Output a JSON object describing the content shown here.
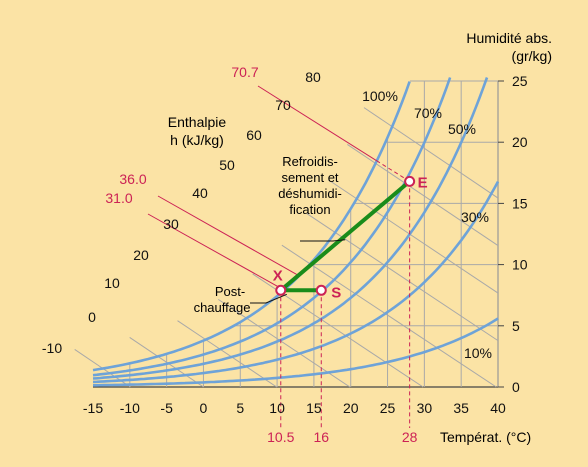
{
  "chart_data": {
    "type": "line",
    "title": "",
    "chart_kind": "psychrometric",
    "x_axis": {
      "label": "Températ. (°C)",
      "ticks": [
        "-15",
        "-10",
        "-5",
        "0",
        "5",
        "10",
        "15",
        "20",
        "25",
        "30",
        "35",
        "40"
      ],
      "range": [
        -15,
        40
      ],
      "highlight_ticks": [
        "10.5",
        "16",
        "28"
      ]
    },
    "y_axis": {
      "label_line1": "Humidité abs.",
      "label_line2": "(gr/kg)",
      "ticks": [
        "0",
        "5",
        "10",
        "15",
        "20",
        "25"
      ],
      "range": [
        0,
        25
      ],
      "position": "right"
    },
    "enthalpy": {
      "label_line1": "Enthalpie",
      "label_line2": "h (kJ/kg)",
      "ticks": [
        "-10",
        "0",
        "10",
        "20",
        "30",
        "40",
        "50",
        "60",
        "70",
        "80"
      ],
      "highlight_ticks": [
        "70.7",
        "36.0",
        "31.0"
      ]
    },
    "series": [
      {
        "name": "100%",
        "rh": 100
      },
      {
        "name": "70%",
        "rh": 70
      },
      {
        "name": "50%",
        "rh": 50
      },
      {
        "name": "30%",
        "rh": 30
      },
      {
        "name": "10%",
        "rh": 10
      }
    ],
    "points": [
      {
        "name": "E",
        "t": 28,
        "w": 16.8
      },
      {
        "name": "X",
        "t": 10.5,
        "w": 7.9
      },
      {
        "name": "S",
        "t": 16,
        "w": 7.9
      }
    ],
    "annotations": {
      "cooling_line1": "Refroidis-",
      "cooling_line2": "sement et",
      "cooling_line3": "déshumidi-",
      "cooling_line4": "fication",
      "reheat_line1": "Post-",
      "reheat_line2": "chauffage"
    },
    "colors": {
      "background": "#fbe3a5",
      "curve": "#6ea3d8",
      "grid": "#a9a9a9",
      "process": "#1a8c1a",
      "highlight": "#cc2255",
      "text": "#111111"
    },
    "grid": true
  }
}
